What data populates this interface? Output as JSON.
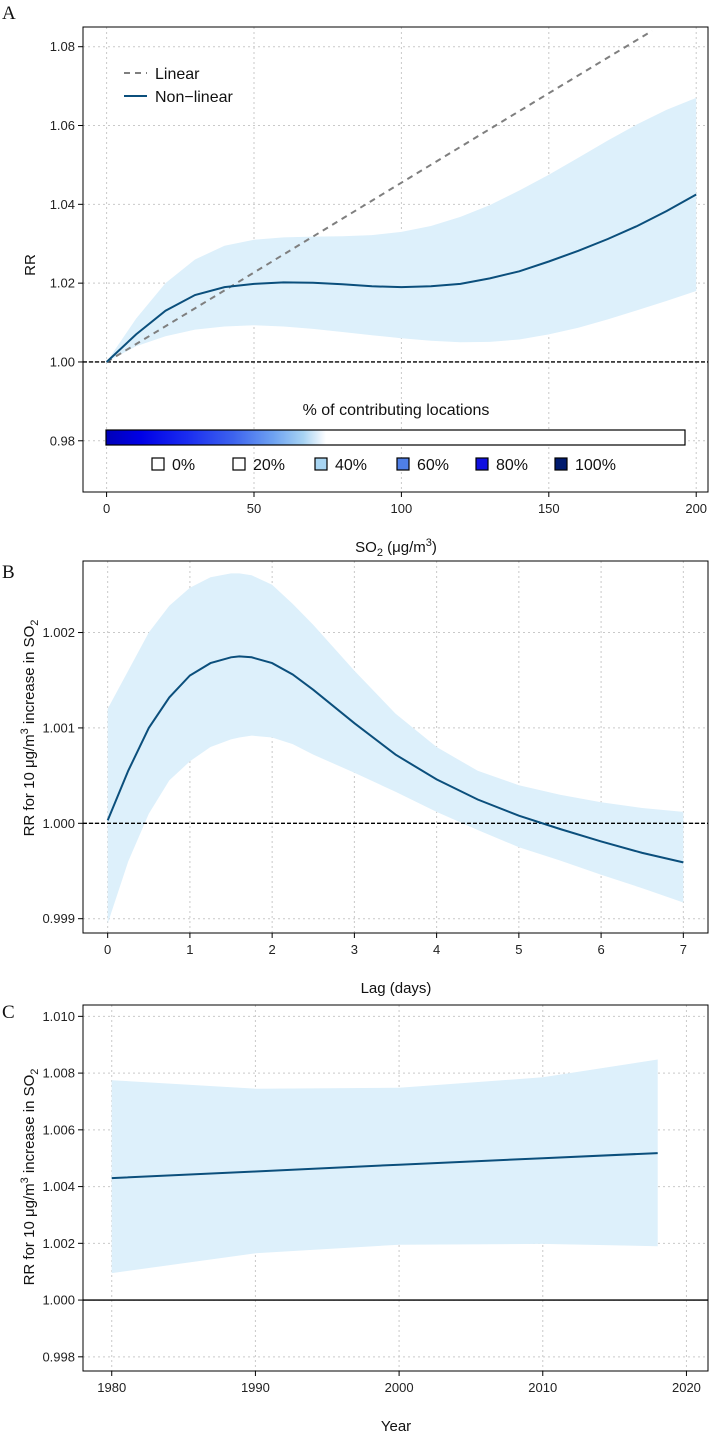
{
  "colors": {
    "band": "#ddf0fb",
    "curve": "#0b4f7c",
    "linear": "#7f7f7f",
    "reference": "#000000"
  },
  "chart_data": [
    {
      "panel": "A",
      "type": "line",
      "xlabel": "SO2 (μg/m3)",
      "ylabel": "RR",
      "xlim": [
        -8,
        204
      ],
      "ylim": [
        0.967,
        1.085
      ],
      "xticks": [
        0,
        50,
        100,
        150,
        200
      ],
      "yticks": [
        0.98,
        1.0,
        1.02,
        1.04,
        1.06,
        1.08
      ],
      "grid": true,
      "reference_y": 1.0,
      "legend": {
        "position": "top-left",
        "entries": [
          "Linear",
          "Non−linear"
        ]
      },
      "series": [
        {
          "name": "Linear",
          "style": "dashed",
          "x": [
            0,
            50,
            100,
            150,
            185
          ],
          "y": [
            1.0,
            1.0227,
            1.0455,
            1.0682,
            1.084
          ]
        },
        {
          "name": "Non−linear",
          "style": "solid",
          "x": [
            0,
            10,
            20,
            30,
            40,
            50,
            60,
            70,
            80,
            90,
            100,
            110,
            120,
            130,
            140,
            150,
            160,
            170,
            180,
            190,
            200
          ],
          "y": [
            1.0,
            1.007,
            1.013,
            1.017,
            1.019,
            1.0198,
            1.0202,
            1.0201,
            1.0197,
            1.0192,
            1.019,
            1.0192,
            1.0198,
            1.0212,
            1.023,
            1.0255,
            1.0282,
            1.0312,
            1.0345,
            1.0383,
            1.0425
          ],
          "lower": [
            1.0,
            1.004,
            1.0065,
            1.0082,
            1.009,
            1.0093,
            1.009,
            1.0084,
            1.0076,
            1.0068,
            1.006,
            1.0054,
            1.005,
            1.0051,
            1.0057,
            1.007,
            1.0087,
            1.0108,
            1.0131,
            1.0155,
            1.018
          ],
          "upper": [
            1.0,
            1.011,
            1.02,
            1.026,
            1.0295,
            1.031,
            1.0316,
            1.0318,
            1.0319,
            1.0322,
            1.033,
            1.0345,
            1.0368,
            1.0398,
            1.0435,
            1.0475,
            1.0518,
            1.0562,
            1.0603,
            1.064,
            1.067
          ]
        }
      ],
      "colorbar": {
        "title": "% of contributing locations",
        "legend": [
          {
            "label": "0%",
            "color": "#ffffff"
          },
          {
            "label": "20%",
            "color": "#ffffff"
          },
          {
            "label": "40%",
            "color": "#a8d5f2"
          },
          {
            "label": "60%",
            "color": "#4f7fe6"
          },
          {
            "label": "80%",
            "color": "#1010e0"
          },
          {
            "label": "100%",
            "color": "#001a6e"
          }
        ]
      }
    },
    {
      "panel": "B",
      "type": "line",
      "xlabel": "Lag (days)",
      "ylabel": "RR for 10 μg/m3 increase in SO2",
      "xlim": [
        -0.3,
        7.3
      ],
      "ylim": [
        0.99885,
        1.00275
      ],
      "xticks": [
        0,
        1,
        2,
        3,
        4,
        5,
        6,
        7
      ],
      "yticks": [
        0.999,
        1.0,
        1.001,
        1.002
      ],
      "grid": true,
      "reference_y": 1.0,
      "series": [
        {
          "name": "",
          "style": "solid",
          "x": [
            0,
            0.25,
            0.5,
            0.75,
            1,
            1.25,
            1.5,
            1.6,
            1.75,
            2,
            2.25,
            2.5,
            3,
            3.5,
            4,
            4.5,
            5,
            5.5,
            6,
            6.5,
            7
          ],
          "y": [
            1.00003,
            1.00055,
            1.001,
            1.00132,
            1.00155,
            1.00168,
            1.00174,
            1.00175,
            1.00174,
            1.00168,
            1.00156,
            1.0014,
            1.00105,
            1.00072,
            1.00046,
            1.00025,
            1.00008,
            0.99994,
            0.99981,
            0.99969,
            0.99959
          ],
          "lower": [
            0.99895,
            0.9996,
            1.0001,
            1.00045,
            1.00065,
            1.0008,
            1.00088,
            1.0009,
            1.00092,
            1.0009,
            1.00083,
            1.00072,
            1.00053,
            1.00033,
            1.00012,
            0.99993,
            0.99975,
            0.99961,
            0.99946,
            0.99932,
            0.99917
          ],
          "upper": [
            1.0012,
            1.0016,
            1.002,
            1.00228,
            1.00247,
            1.00258,
            1.00262,
            1.00262,
            1.0026,
            1.0025,
            1.0023,
            1.00208,
            1.0016,
            1.00115,
            1.0008,
            1.00055,
            1.0004,
            1.0003,
            1.00022,
            1.00016,
            1.00012
          ]
        }
      ]
    },
    {
      "panel": "C",
      "type": "line",
      "xlabel": "Year",
      "ylabel": "RR for 10 μg/m3 increase in SO2",
      "xlim": [
        1978,
        2021.5
      ],
      "ylim": [
        0.9975,
        1.0104
      ],
      "xticks": [
        1980,
        1990,
        2000,
        2010,
        2020
      ],
      "yticks": [
        0.998,
        1.0,
        1.002,
        1.004,
        1.006,
        1.008,
        1.01
      ],
      "grid": true,
      "reference_y": 1.0,
      "series": [
        {
          "name": "",
          "style": "solid",
          "x": [
            1980,
            1990,
            2000,
            2010,
            2018
          ],
          "y": [
            1.0043,
            1.00453,
            1.00477,
            1.005,
            1.00518
          ],
          "lower": [
            1.00095,
            1.00165,
            1.00195,
            1.00198,
            1.0019
          ],
          "upper": [
            1.00775,
            1.00745,
            1.00748,
            1.00785,
            1.00848
          ]
        }
      ]
    }
  ]
}
